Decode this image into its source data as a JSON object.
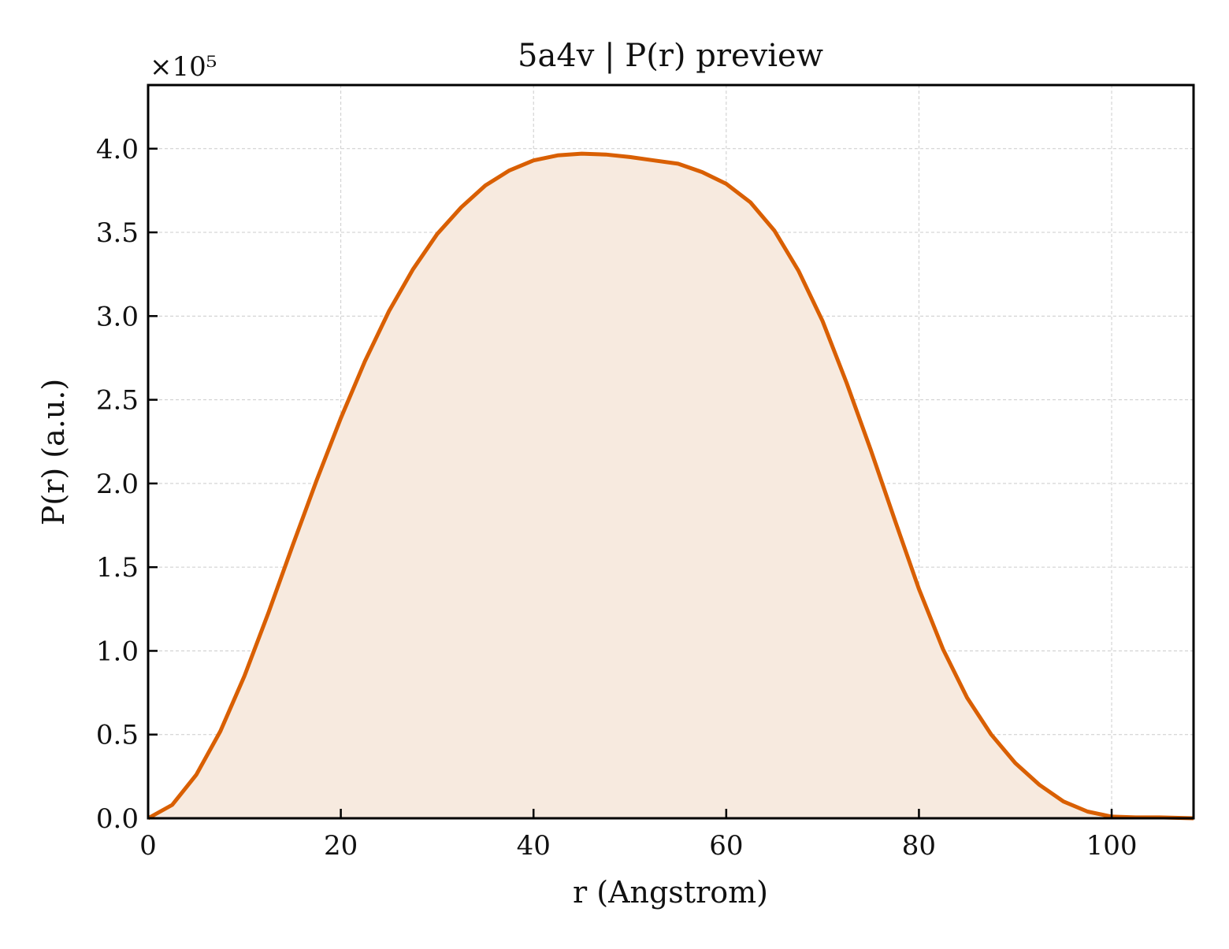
{
  "chart_data": {
    "type": "area",
    "title": "5a4v | P(r) preview",
    "xlabel": "r (Angstrom)",
    "ylabel": "P(r) (a.u.)",
    "y_multiplier": "×10⁵",
    "xlim": [
      0,
      108.5
    ],
    "ylim": [
      0,
      4.38
    ],
    "xticks": [
      0,
      20,
      40,
      60,
      80,
      100
    ],
    "xtick_labels": [
      "0",
      "20",
      "40",
      "60",
      "80",
      "100"
    ],
    "yticks": [
      0,
      0.5,
      1.0,
      1.5,
      2.0,
      2.5,
      3.0,
      3.5,
      4.0
    ],
    "ytick_labels": [
      "0.0",
      "0.5",
      "1.0",
      "1.5",
      "2.0",
      "2.5",
      "3.0",
      "3.5",
      "4.0"
    ],
    "grid": true,
    "line_color": "#d95f02",
    "fill_color": "#f7eadf",
    "series": [
      {
        "x": [
          0,
          2.5,
          5,
          7.5,
          10,
          12.5,
          15,
          17.5,
          20,
          22.5,
          25,
          27.5,
          30,
          32.5,
          35,
          37.5,
          40,
          42.5,
          45,
          47.5,
          50,
          52.5,
          55,
          57.5,
          60,
          62.5,
          65,
          67.5,
          70,
          72.5,
          75,
          77.5,
          80,
          82.5,
          85,
          87.5,
          90,
          92.5,
          95,
          97.5,
          100,
          102.5,
          105,
          108.5
        ],
        "y": [
          0.0,
          0.08,
          0.26,
          0.52,
          0.85,
          1.23,
          1.63,
          2.02,
          2.39,
          2.73,
          3.03,
          3.28,
          3.49,
          3.65,
          3.78,
          3.87,
          3.93,
          3.96,
          3.97,
          3.965,
          3.95,
          3.93,
          3.91,
          3.86,
          3.79,
          3.68,
          3.51,
          3.27,
          2.97,
          2.6,
          2.2,
          1.78,
          1.37,
          1.01,
          0.72,
          0.5,
          0.33,
          0.2,
          0.1,
          0.04,
          0.01,
          0.005,
          0.005,
          0.0
        ]
      }
    ]
  }
}
